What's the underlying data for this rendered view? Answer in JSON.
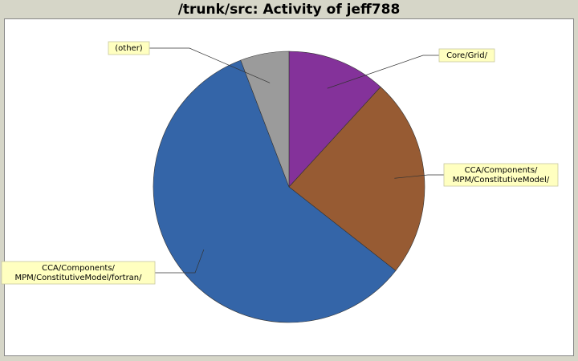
{
  "chart_data": {
    "type": "pie",
    "title": "/trunk/src: Activity of jeff788",
    "slices": [
      {
        "label": [
          "Core/Grid/"
        ],
        "value": 11.8,
        "color": "#84329a"
      },
      {
        "label": [
          "CCA/Components/",
          "MPM/ConstitutiveModel/"
        ],
        "value": 23.8,
        "color": "#975b33"
      },
      {
        "label": [
          "CCA/Components/",
          "MPM/ConstitutiveModel/fortran/"
        ],
        "value": 58.6,
        "color": "#3465a8"
      },
      {
        "label": [
          "(other)"
        ],
        "value": 5.8,
        "color": "#9b9b9b"
      }
    ]
  }
}
